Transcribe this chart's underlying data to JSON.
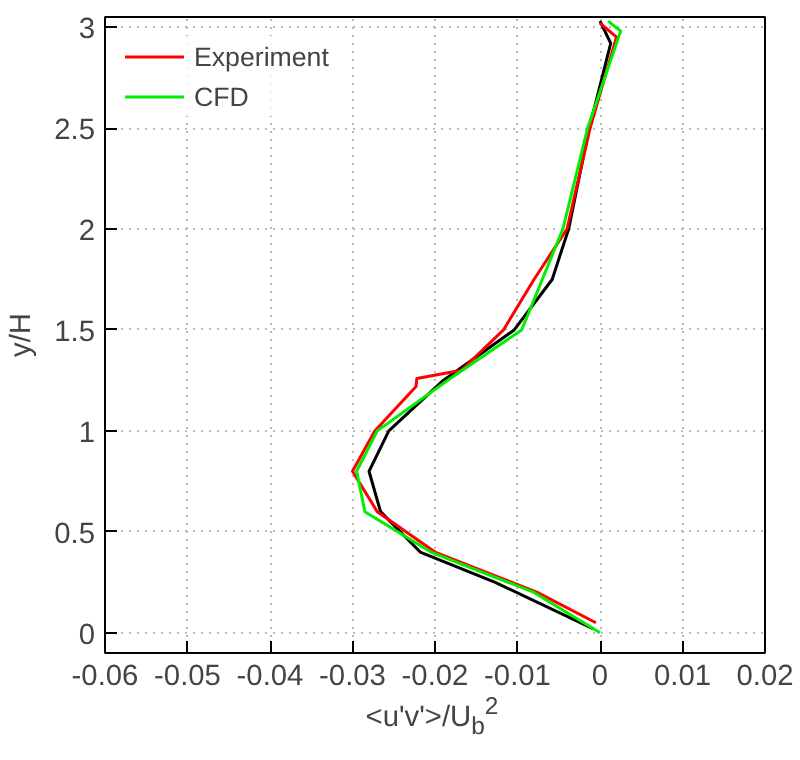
{
  "chart_data": {
    "type": "line",
    "xlabel": "<u'v'>/U$_{b}$$^{2}$",
    "ylabel": "y/H",
    "xlim": [
      -0.06,
      0.02
    ],
    "ylim": [
      -0.1,
      3.05
    ],
    "xticks": [
      -0.06,
      -0.05,
      -0.04,
      -0.03,
      -0.02,
      -0.01,
      0,
      0.01,
      0.02
    ],
    "yticks": [
      0,
      0.5,
      1,
      1.5,
      2,
      2.5,
      3
    ],
    "grid": true,
    "legend": "top left",
    "line_style": "solid",
    "series": [
      {
        "color": "#000000",
        "x": [
          -0.0008,
          -0.0127,
          -0.0218,
          -0.0266,
          -0.028,
          -0.0256,
          -0.019,
          -0.0104,
          -0.0058,
          -0.0038,
          -0.0013,
          0.0013,
          0.0
        ],
        "values": [
          0.02,
          0.25,
          0.4,
          0.6,
          0.8,
          1.0,
          1.25,
          1.5,
          1.75,
          2.0,
          2.5,
          2.92,
          3.03
        ]
      },
      {
        "name": "Experiment",
        "color": "#ff0000",
        "x": [
          -0.0005,
          -0.0076,
          -0.02,
          -0.027,
          -0.03,
          -0.0273,
          -0.0223,
          -0.0222,
          -0.0168,
          -0.0117,
          -0.008,
          -0.004,
          -0.0012,
          0.002,
          0.0
        ],
        "values": [
          0.05,
          0.2,
          0.4,
          0.6,
          0.8,
          1.0,
          1.22,
          1.26,
          1.3,
          1.5,
          1.75,
          2.0,
          2.5,
          2.95,
          3.02
        ]
      },
      {
        "name": "CFD",
        "color": "#00ee00",
        "x": [
          0.0,
          -0.008,
          -0.0205,
          -0.0285,
          -0.0295,
          -0.027,
          -0.0185,
          -0.0095,
          -0.007,
          -0.0045,
          -0.0015,
          0.0025,
          0.001
        ],
        "values": [
          0.0,
          0.2,
          0.4,
          0.6,
          0.8,
          1.0,
          1.25,
          1.5,
          1.75,
          2.0,
          2.5,
          2.98,
          3.03
        ]
      }
    ]
  }
}
